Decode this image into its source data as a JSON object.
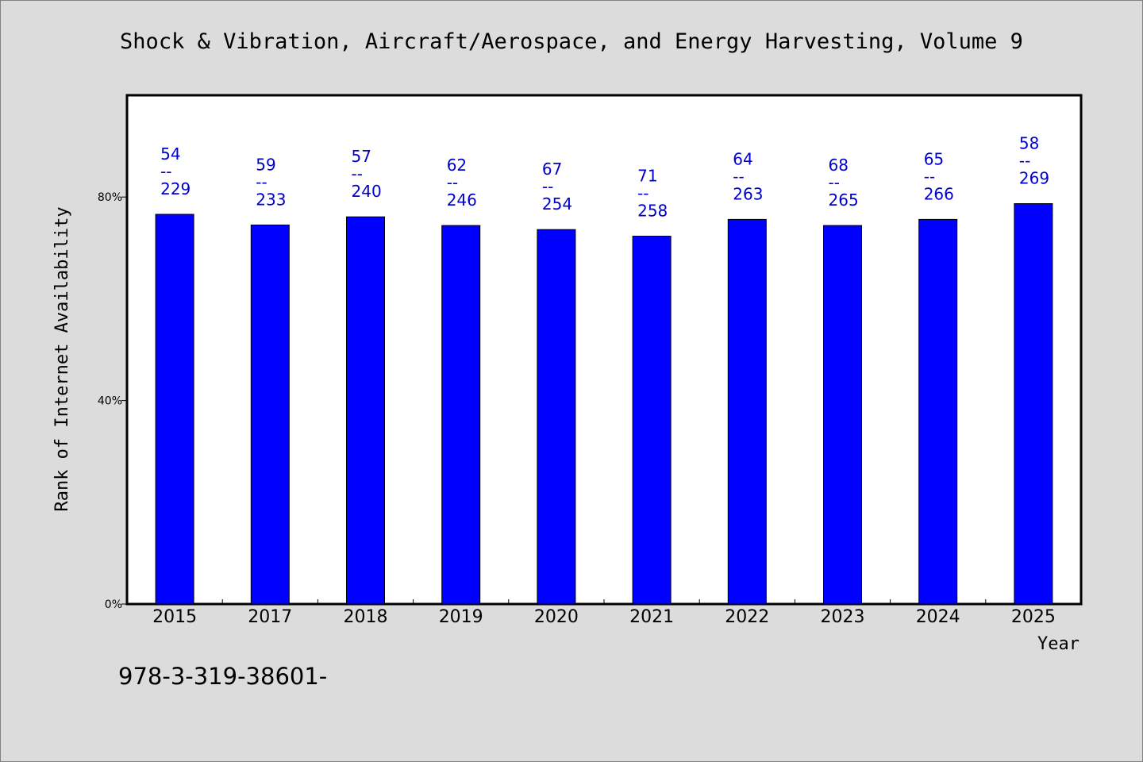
{
  "chart_data": {
    "type": "bar",
    "title": "Shock & Vibration, Aircraft/Aerospace, and Energy Harvesting, Volume 9",
    "xlabel": "Year",
    "ylabel": "Rank of Internet Availability",
    "ylim": [
      0,
      100
    ],
    "yticks": [
      {
        "value": 0,
        "label": "0%"
      },
      {
        "value": 40,
        "label": "40%"
      },
      {
        "value": 80,
        "label": "80%"
      }
    ],
    "grid": false,
    "categories": [
      "2015",
      "2017",
      "2018",
      "2019",
      "2020",
      "2021",
      "2022",
      "2023",
      "2024",
      "2025"
    ],
    "values": [
      76.6,
      74.5,
      76.1,
      74.4,
      73.6,
      72.3,
      75.6,
      74.4,
      75.6,
      78.7
    ],
    "data_labels": [
      {
        "top": "54",
        "sep": "--",
        "bottom": "229"
      },
      {
        "top": "59",
        "sep": "--",
        "bottom": "233"
      },
      {
        "top": "57",
        "sep": "--",
        "bottom": "240"
      },
      {
        "top": "62",
        "sep": "--",
        "bottom": "246"
      },
      {
        "top": "67",
        "sep": "--",
        "bottom": "254"
      },
      {
        "top": "71",
        "sep": "--",
        "bottom": "258"
      },
      {
        "top": "64",
        "sep": "--",
        "bottom": "263"
      },
      {
        "top": "68",
        "sep": "--",
        "bottom": "265"
      },
      {
        "top": "65",
        "sep": "--",
        "bottom": "266"
      },
      {
        "top": "58",
        "sep": "--",
        "bottom": "269"
      }
    ],
    "colors": {
      "bar": "#0000ff",
      "label": "#0000cc",
      "plot_bg": "#ffffff",
      "page_bg": "#dcdcdc"
    }
  },
  "footer": {
    "isbn": "978-3-319-38601-"
  }
}
